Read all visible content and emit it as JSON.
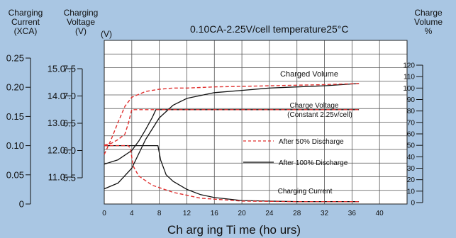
{
  "chart_data": {
    "type": "line",
    "title": "0.10CA-2.25V/cell    temperature25°C",
    "xlabel": "Ch arg ing  Ti me (ho urs)",
    "x_ticks": [
      0,
      4,
      8,
      12,
      16,
      20,
      24,
      28,
      32,
      36,
      40
    ],
    "xlim": [
      0,
      44
    ],
    "axes": {
      "current": {
        "title_lines": [
          "Charging",
          "Current",
          "(XCA)"
        ],
        "ticks": [
          {
            "v": 0,
            "t": "0"
          },
          {
            "v": 0.05,
            "t": "0.05"
          },
          {
            "v": 0.1,
            "t": "0.10"
          },
          {
            "v": 0.15,
            "t": "0.15"
          },
          {
            "v": 0.2,
            "t": "0.20"
          },
          {
            "v": 0.25,
            "t": "0.25"
          }
        ],
        "range": [
          0,
          0.25
        ]
      },
      "voltage_battery": {
        "title_lines": [
          "Charging",
          "Voltage",
          "(V)"
        ],
        "ticks": [
          {
            "v": 11,
            "t": "11.0"
          },
          {
            "v": 12,
            "t": "12.0"
          },
          {
            "v": 13,
            "t": "13.0"
          },
          {
            "v": 14,
            "t": "14.0"
          },
          {
            "v": 15,
            "t": "15.0"
          }
        ],
        "range": [
          11,
          15
        ]
      },
      "voltage_cell": {
        "title_lines": [
          "(V)"
        ],
        "ticks": [
          {
            "v": 5.5,
            "t": "5.5"
          },
          {
            "v": 6,
            "t": "6.0"
          },
          {
            "v": 6.5,
            "t": "6.5"
          },
          {
            "v": 7,
            "t": "7.0"
          },
          {
            "v": 7.5,
            "t": "7.5"
          }
        ],
        "range": [
          5.5,
          7.5
        ]
      },
      "volume": {
        "title_lines": [
          "Charge",
          "Volume",
          "%"
        ],
        "ticks": [
          {
            "v": 0,
            "t": "0"
          },
          {
            "v": 10,
            "t": "10"
          },
          {
            "v": 20,
            "t": "20"
          },
          {
            "v": 30,
            "t": "30"
          },
          {
            "v": 40,
            "t": "40"
          },
          {
            "v": 50,
            "t": "50"
          },
          {
            "v": 60,
            "t": "60"
          },
          {
            "v": 70,
            "t": "70"
          },
          {
            "v": 80,
            "t": "80"
          },
          {
            "v": 90,
            "t": "90"
          },
          {
            "v": 100,
            "t": "100"
          },
          {
            "v": 110,
            "t": "110"
          },
          {
            "v": 120,
            "t": "120"
          }
        ],
        "range": [
          0,
          120
        ]
      }
    },
    "series": [
      {
        "name": "Charged Volume",
        "axis": "volume",
        "style": "solid",
        "x": [
          0,
          2,
          4,
          6,
          8,
          10,
          12,
          16,
          20,
          24,
          28,
          32,
          37
        ],
        "y": [
          12,
          17,
          30,
          55,
          74,
          85,
          91,
          96,
          98,
          100,
          101,
          102,
          104
        ]
      },
      {
        "name": "Charged Volume (After 50% Discharge)",
        "axis": "volume",
        "style": "dashed",
        "x": [
          0,
          1,
          2,
          3,
          4,
          6,
          8,
          10,
          12,
          16,
          24,
          32,
          37
        ],
        "y": [
          42,
          55,
          70,
          84,
          92,
          97,
          99,
          100,
          100,
          101,
          102,
          103,
          104
        ]
      },
      {
        "name": "Charge Voltage",
        "axis": "voltage_cell",
        "style": "solid",
        "x": [
          0,
          2,
          4,
          5,
          6,
          7,
          7.5,
          37
        ],
        "y": [
          5.75,
          5.83,
          6.0,
          6.17,
          6.38,
          6.61,
          6.75,
          6.75
        ]
      },
      {
        "name": "Charge Voltage (After 50% Discharge)",
        "axis": "voltage_cell",
        "style": "dashed",
        "x": [
          0,
          1,
          2,
          3,
          3.5,
          4,
          37
        ],
        "y": [
          6.1,
          6.13,
          6.2,
          6.3,
          6.5,
          6.75,
          6.75
        ]
      },
      {
        "name": "Charging Current",
        "axis": "current",
        "style": "solid",
        "x": [
          0,
          7.8,
          8.2,
          9,
          10,
          12,
          14,
          16,
          20,
          24,
          28,
          37
        ],
        "y": [
          0.1,
          0.1,
          0.075,
          0.05,
          0.039,
          0.025,
          0.016,
          0.011,
          0.006,
          0.005,
          0.004,
          0.004
        ]
      },
      {
        "name": "Charging Current (After 50% Discharge)",
        "axis": "current",
        "style": "dashed",
        "x": [
          0,
          3.5,
          3.8,
          4.2,
          5,
          7,
          10,
          14,
          20,
          28,
          37
        ],
        "y": [
          0.1,
          0.1,
          0.095,
          0.065,
          0.048,
          0.032,
          0.02,
          0.01,
          0.005,
          0.004,
          0.004
        ]
      }
    ],
    "annotations": {
      "charged_volume": "Charged Volume",
      "charge_voltage": "Charge Voltage",
      "constant": "(Constant 2.25v/cell)",
      "charging_current": "Charging Current"
    },
    "legend": [
      {
        "label": "After 50% Discharge",
        "style": "dashed",
        "color": "#e0302f"
      },
      {
        "label": "After 100% Discharge",
        "style": "solid",
        "color": "#111111"
      }
    ],
    "grid": true,
    "colors": {
      "background": "#a9c6e3",
      "plot_area": "#ffffff",
      "grid": "#555555",
      "dashed": "#e0302f",
      "solid": "#111111"
    }
  }
}
